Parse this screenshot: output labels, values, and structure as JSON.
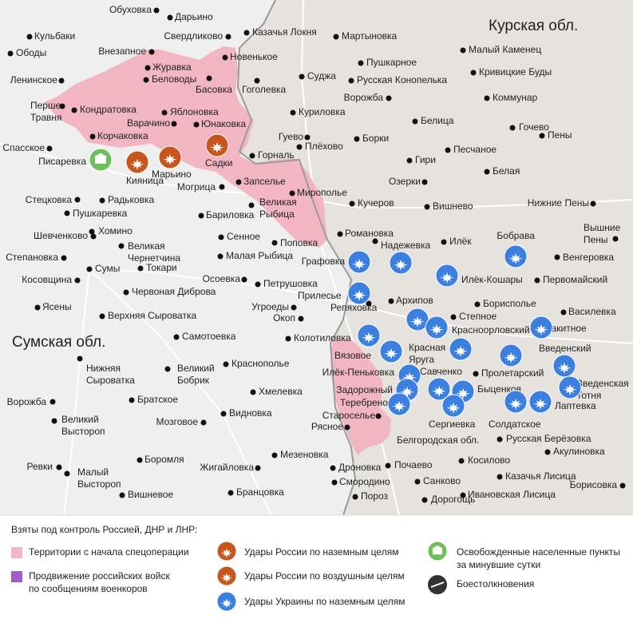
{
  "regions": [
    "Курская обл.",
    "Сумская обл.",
    "Белгородская обл."
  ],
  "places": [
    [
      "Обуховка"
    ],
    [
      "Дарьино"
    ],
    [
      "Свердликово"
    ],
    [
      "Казачья Локня"
    ],
    [
      "Мартыновка"
    ],
    [
      "Кульбаки"
    ],
    [
      "Ободы"
    ],
    [
      "Внезапное"
    ],
    [
      "Новенькое"
    ],
    [
      "Пушкарное"
    ],
    [
      "Малый Каменец"
    ],
    [
      "Журавка"
    ],
    [
      "Кривицкие Буды"
    ],
    [
      "Суджа"
    ],
    [
      "Русская Конопелька"
    ],
    [
      "Ленинское"
    ],
    [
      "Беловоды"
    ],
    [
      "Басовка"
    ],
    [
      "Гоголевка"
    ],
    [
      "Перше",
      "Травня"
    ],
    [
      "Кондратовка"
    ],
    [
      "Яблоновка"
    ],
    [
      "Ворожба"
    ],
    [
      "Коммунар"
    ],
    [
      "Куриловка"
    ],
    [
      "Варачино"
    ],
    [
      "Юнаковка"
    ],
    [
      "Белица"
    ],
    [
      "Гочево"
    ],
    [
      "Корчаковка"
    ],
    [
      "Гуево"
    ],
    [
      "Борки"
    ],
    [
      "Пены"
    ],
    [
      "Плёхово"
    ],
    [
      "Горналь"
    ],
    [
      "Гири"
    ],
    [
      "Песчаное"
    ],
    [
      "Спасское"
    ],
    [
      "Писаревка"
    ],
    [
      "Кияница"
    ],
    [
      "Марьино"
    ],
    [
      "Садки"
    ],
    [
      "Белая"
    ],
    [
      "Запселье"
    ],
    [
      "Мирополье"
    ],
    [
      "Озерки"
    ],
    [
      "Могрица"
    ],
    [
      "Стецковка"
    ],
    [
      "Радьковка"
    ],
    [
      "Великая",
      "Рыбица"
    ],
    [
      "Кучеров"
    ],
    [
      "Нижние Пены"
    ],
    [
      "Вишнево"
    ],
    [
      "Пушкаревка"
    ],
    [
      "Бариловка"
    ],
    [
      "Вышние",
      "Пены"
    ],
    [
      "Шевченково"
    ],
    [
      "Хомино"
    ],
    [
      "Сенное"
    ],
    [
      "Романовка"
    ],
    [
      "Надежевка"
    ],
    [
      "Илёк"
    ],
    [
      "Бобрава"
    ],
    [
      "Венгеровка"
    ],
    [
      "Великая",
      "Чернетчина"
    ],
    [
      "Поповка"
    ],
    [
      "Степановка"
    ],
    [
      "Малая Рыбица"
    ],
    [
      "Графовка"
    ],
    [
      "Токари"
    ],
    [
      "Сумы"
    ],
    [
      "Косовщина"
    ],
    [
      "Осоевка"
    ],
    [
      "Первомайский"
    ],
    [
      "Илёк-Кошары"
    ],
    [
      "Петрушовка"
    ],
    [
      "Прилесье"
    ],
    [
      "Червоная Диброва"
    ],
    [
      "Архипов"
    ],
    [
      "Степное"
    ],
    [
      "Репяховка"
    ],
    [
      "Борисполье"
    ],
    [
      "Ясены"
    ],
    [
      "Угроеды"
    ],
    [
      "Василевка"
    ],
    [
      "Верхняя Сыроватка"
    ],
    [
      "Окоп"
    ],
    [
      "Краснооpловский"
    ],
    [
      "Ракитное"
    ],
    [
      "Самотоевка"
    ],
    [
      "Колотиловка"
    ],
    [
      "Введенский"
    ],
    [
      "Красная",
      "Яруга"
    ],
    [
      "Вязовое"
    ],
    [
      "Нижняя",
      "Сыроватка"
    ],
    [
      "Краснополье"
    ],
    [
      "Великий",
      "Бобрик"
    ],
    [
      "Пролетарский"
    ],
    [
      "Введенская",
      "Тотня"
    ],
    [
      "Илёк-Пеньковка"
    ],
    [
      "Савченко"
    ],
    [
      "Хмелевка"
    ],
    [
      "Быценков"
    ],
    [
      "Братское"
    ],
    [
      "Задорожный"
    ],
    [
      "Теребрено"
    ],
    [
      "Лаптевка"
    ],
    [
      "Ворожба"
    ],
    [
      "Видновка"
    ],
    [
      "Великий",
      "Высторoп"
    ],
    [
      "Мозговое"
    ],
    [
      "Староселье"
    ],
    [
      "Рясное"
    ],
    [
      "Солдатское"
    ],
    [
      "Сергиевка"
    ],
    [
      "Русская Берёзовка"
    ],
    [
      "Акулиновка"
    ],
    [
      "Боромля"
    ],
    [
      "Жигайловка"
    ],
    [
      "Мезеновка"
    ],
    [
      "Косилово"
    ],
    [
      "Ревки"
    ],
    [
      "Малый",
      "Высторoп"
    ],
    [
      "Дроновка"
    ],
    [
      "Почаево"
    ],
    [
      "Казачья Лисица"
    ],
    [
      "Смородино"
    ],
    [
      "Санково"
    ],
    [
      "Борисовка"
    ],
    [
      "Вишневое"
    ],
    [
      "Бранцовка"
    ],
    [
      "Пороз"
    ],
    [
      "Дорогощь"
    ],
    [
      "Ивановская Лисица"
    ]
  ],
  "legend": {
    "title": "Взяты под контроль Россией, ДНР и ЛНР:",
    "items": [
      [
        "Территории с начала спецоперации"
      ],
      [
        "Продвижение российских войск",
        "по сообщениям военкоров"
      ],
      [
        "Удары России по наземным целям"
      ],
      [
        "Удары России по воздушным целям"
      ],
      [
        "Удары Украины по наземным целям"
      ],
      [
        "Освобожденные населенные пункты",
        "за минувшие сутки"
      ],
      [
        "Боестолкновения"
      ]
    ]
  }
}
